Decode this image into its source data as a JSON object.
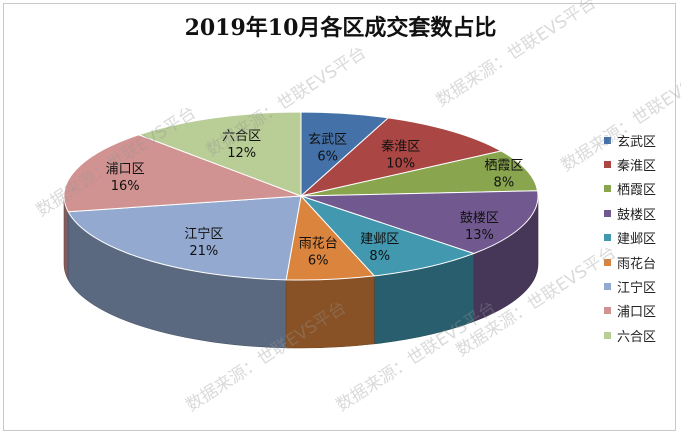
{
  "chart_data": {
    "type": "pie",
    "title": "2019年10月各区成交套数占比",
    "slices": [
      {
        "label": "玄武区",
        "value": 6,
        "display": "6%",
        "color": "#4472a8"
      },
      {
        "label": "秦淮区",
        "value": 10,
        "display": "10%",
        "color": "#aa4643"
      },
      {
        "label": "栖霞区",
        "value": 8,
        "display": "8%",
        "color": "#89a54e"
      },
      {
        "label": "鼓楼区",
        "value": 13,
        "display": "13%",
        "color": "#71588f"
      },
      {
        "label": "建邺区",
        "value": 8,
        "display": "8%",
        "color": "#4198af"
      },
      {
        "label": "雨花台",
        "value": 6,
        "display": "6%",
        "color": "#db843d"
      },
      {
        "label": "江宁区",
        "value": 21,
        "display": "21%",
        "color": "#93a9cf"
      },
      {
        "label": "浦口区",
        "value": 16,
        "display": "16%",
        "color": "#d19392"
      },
      {
        "label": "六合区",
        "value": 12,
        "display": "12%",
        "color": "#b9cd96"
      }
    ],
    "legend_position": "right"
  },
  "watermark": "数据来源：世联EVS平台"
}
